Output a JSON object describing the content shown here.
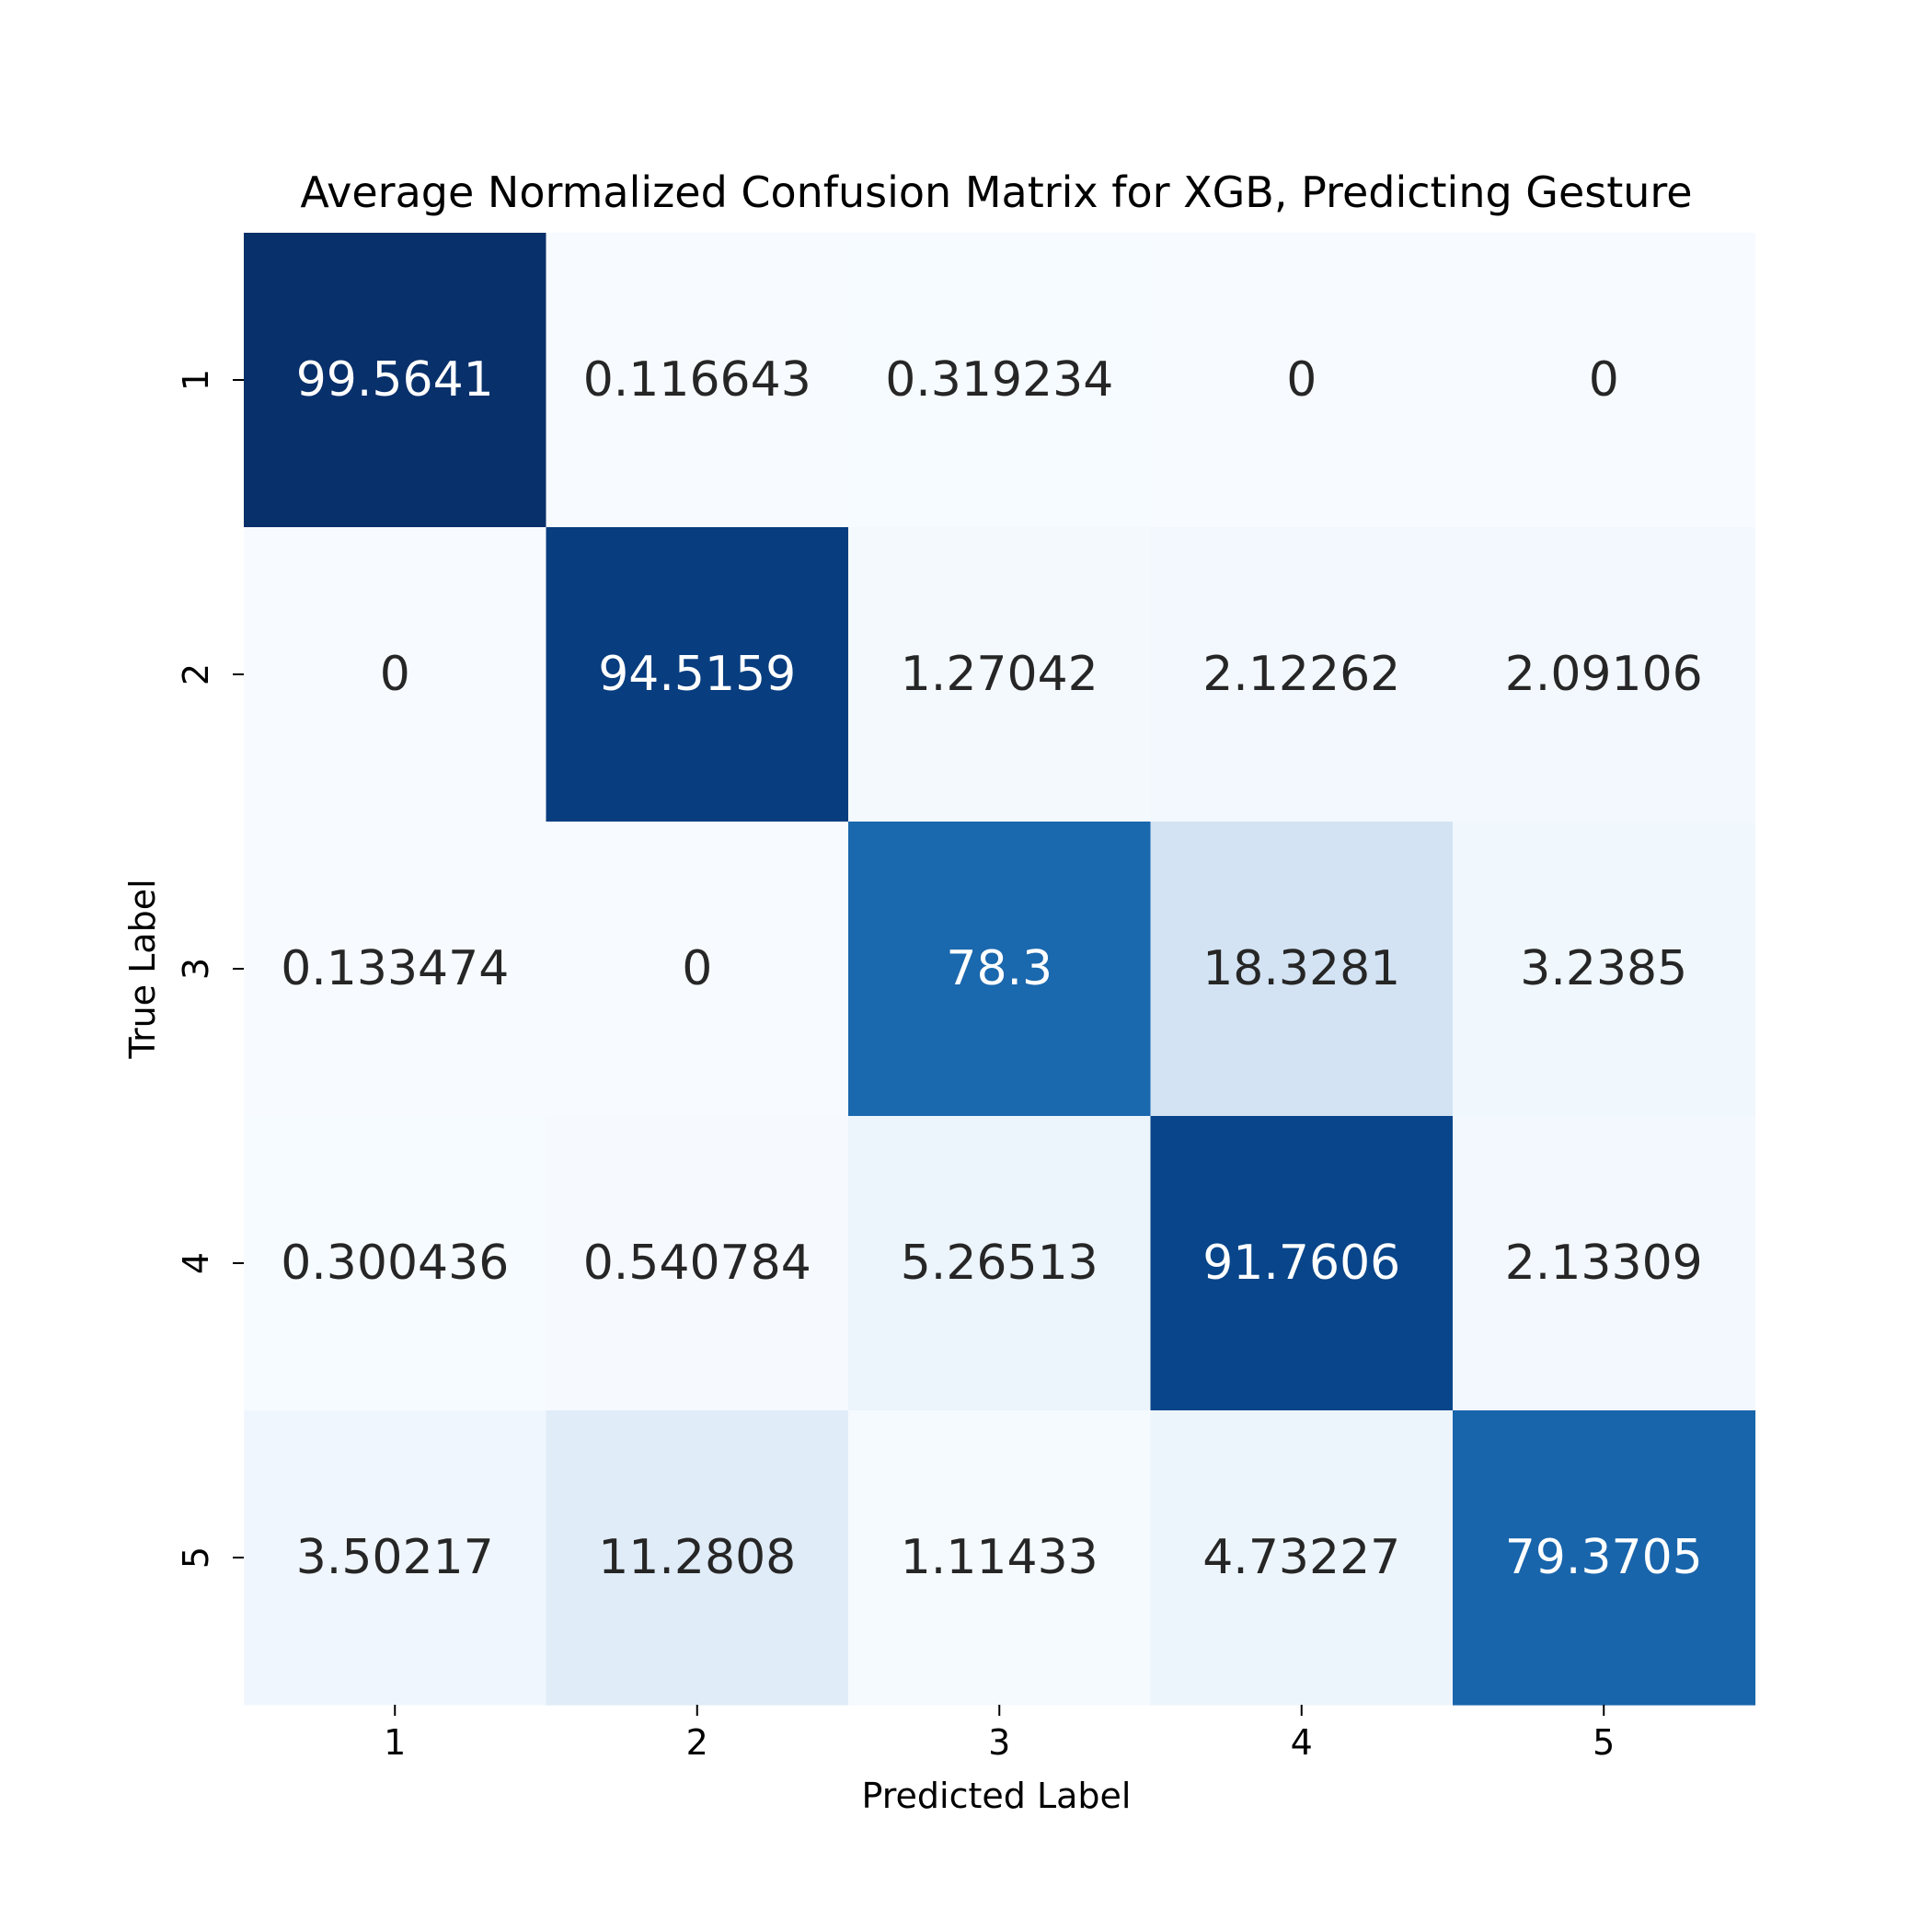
{
  "chart_data": {
    "type": "heatmap",
    "title": "Average Normalized Confusion Matrix for XGB, Predicting Gesture",
    "xlabel": "Predicted Label",
    "ylabel": "True Label",
    "x_categories": [
      "1",
      "2",
      "3",
      "4",
      "5"
    ],
    "y_categories": [
      "1",
      "2",
      "3",
      "4",
      "5"
    ],
    "values": [
      [
        "99.5641",
        "0.116643",
        "0.319234",
        "0",
        "0"
      ],
      [
        "0",
        "94.5159",
        "1.27042",
        "2.12262",
        "2.09106"
      ],
      [
        "0.133474",
        "0",
        "78.3",
        "18.3281",
        "3.2385"
      ],
      [
        "0.300436",
        "0.540784",
        "5.26513",
        "91.7606",
        "2.13309"
      ],
      [
        "3.50217",
        "11.2808",
        "1.11433",
        "4.73227",
        "79.3705"
      ]
    ],
    "colormap": "Blues",
    "vmin": 0,
    "vmax": 99.5641,
    "colorbar": false,
    "colors": {
      "low": "#f7fbff",
      "high": "#08306b",
      "text_dark": "#262626",
      "text_light": "#ffffff",
      "axis_text": "#000000"
    }
  }
}
